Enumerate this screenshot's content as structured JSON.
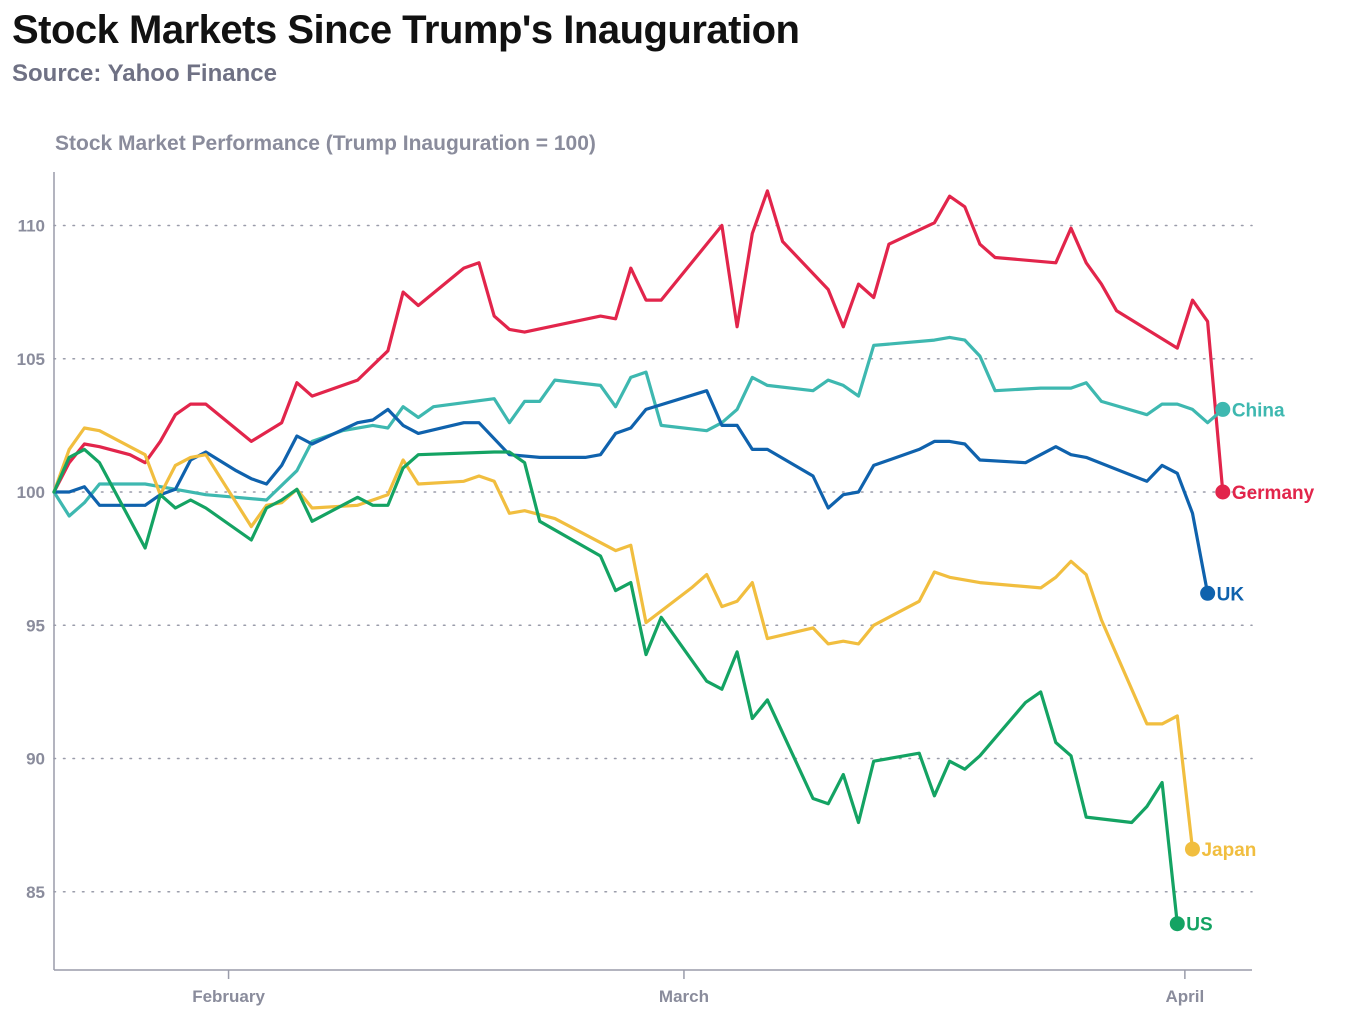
{
  "header": {
    "title": "Stock Markets Since Trump's Inauguration",
    "source": "Source: Yahoo Finance"
  },
  "chart_data": {
    "type": "line",
    "title": "Stock Market Performance (Trump Inauguration = 100)",
    "xlabel": "",
    "ylabel": "",
    "ylim": [
      82,
      112
    ],
    "yticks": [
      85,
      90,
      95,
      100,
      105,
      110
    ],
    "xticks": [
      {
        "label": "February",
        "day": 11.5
      },
      {
        "label": "March",
        "day": 41.5
      },
      {
        "label": "April",
        "day": 74.5
      }
    ],
    "xrange_days": [
      0,
      78
    ],
    "grid": "horizontal-dotted",
    "series": [
      {
        "name": "Germany",
        "color": "#e2254b",
        "end_value": 100.0,
        "points": [
          [
            0,
            100
          ],
          [
            1,
            101.1
          ],
          [
            2,
            101.8
          ],
          [
            3,
            101.7
          ],
          [
            5,
            101.4
          ],
          [
            6,
            101.1
          ],
          [
            7,
            101.9
          ],
          [
            8,
            102.9
          ],
          [
            9,
            103.3
          ],
          [
            10,
            103.3
          ],
          [
            13,
            101.9
          ],
          [
            15,
            102.6
          ],
          [
            16,
            104.1
          ],
          [
            17,
            103.6
          ],
          [
            20,
            104.2
          ],
          [
            22,
            105.3
          ],
          [
            23,
            107.5
          ],
          [
            24,
            107.0
          ],
          [
            27,
            108.4
          ],
          [
            28,
            108.6
          ],
          [
            29,
            106.6
          ],
          [
            30,
            106.1
          ],
          [
            31,
            106.0
          ],
          [
            36,
            106.6
          ],
          [
            37,
            106.5
          ],
          [
            38,
            108.4
          ],
          [
            39,
            107.2
          ],
          [
            40,
            107.2
          ],
          [
            44,
            110.0
          ],
          [
            45,
            106.2
          ],
          [
            46,
            109.7
          ],
          [
            47,
            111.3
          ],
          [
            48,
            109.4
          ],
          [
            51,
            107.6
          ],
          [
            52,
            106.2
          ],
          [
            53,
            107.8
          ],
          [
            54,
            107.3
          ],
          [
            55,
            109.3
          ],
          [
            58,
            110.1
          ],
          [
            59,
            111.1
          ],
          [
            60,
            110.7
          ],
          [
            61,
            109.3
          ],
          [
            62,
            108.8
          ],
          [
            66,
            108.6
          ],
          [
            67,
            109.9
          ],
          [
            68,
            108.6
          ],
          [
            69,
            107.8
          ],
          [
            70,
            106.8
          ],
          [
            74,
            105.4
          ],
          [
            75,
            107.2
          ],
          [
            76,
            106.4
          ],
          [
            77,
            100.0
          ]
        ]
      },
      {
        "name": "China",
        "color": "#3eb8b0",
        "end_value": 103.1,
        "points": [
          [
            0,
            100
          ],
          [
            1,
            99.1
          ],
          [
            2,
            99.6
          ],
          [
            3,
            100.3
          ],
          [
            5,
            100.3
          ],
          [
            6,
            100.3
          ],
          [
            8,
            100.1
          ],
          [
            10,
            99.9
          ],
          [
            12,
            99.8
          ],
          [
            14,
            99.7
          ],
          [
            16,
            100.8
          ],
          [
            17,
            101.9
          ],
          [
            19,
            102.3
          ],
          [
            21,
            102.5
          ],
          [
            22,
            102.4
          ],
          [
            23,
            103.2
          ],
          [
            24,
            102.8
          ],
          [
            25,
            103.2
          ],
          [
            29,
            103.5
          ],
          [
            30,
            102.6
          ],
          [
            31,
            103.4
          ],
          [
            32,
            103.4
          ],
          [
            33,
            104.2
          ],
          [
            36,
            104.0
          ],
          [
            37,
            103.2
          ],
          [
            38,
            104.3
          ],
          [
            39,
            104.5
          ],
          [
            40,
            102.5
          ],
          [
            43,
            102.3
          ],
          [
            44,
            102.6
          ],
          [
            45,
            103.1
          ],
          [
            46,
            104.3
          ],
          [
            47,
            104.0
          ],
          [
            50,
            103.8
          ],
          [
            51,
            104.2
          ],
          [
            52,
            104.0
          ],
          [
            53,
            103.6
          ],
          [
            54,
            105.5
          ],
          [
            58,
            105.7
          ],
          [
            59,
            105.8
          ],
          [
            60,
            105.7
          ],
          [
            61,
            105.1
          ],
          [
            62,
            103.8
          ],
          [
            65,
            103.9
          ],
          [
            67,
            103.9
          ],
          [
            68,
            104.1
          ],
          [
            69,
            103.4
          ],
          [
            72,
            102.9
          ],
          [
            73,
            103.3
          ],
          [
            74,
            103.3
          ],
          [
            75,
            103.1
          ],
          [
            76,
            102.6
          ],
          [
            77,
            103.1
          ]
        ]
      },
      {
        "name": "UK",
        "color": "#0f62ad",
        "end_value": 96.2,
        "points": [
          [
            0,
            100
          ],
          [
            1,
            100.0
          ],
          [
            2,
            100.2
          ],
          [
            3,
            99.5
          ],
          [
            6,
            99.5
          ],
          [
            7,
            99.9
          ],
          [
            8,
            100.1
          ],
          [
            9,
            101.2
          ],
          [
            10,
            101.5
          ],
          [
            12,
            100.8
          ],
          [
            13,
            100.5
          ],
          [
            14,
            100.3
          ],
          [
            15,
            101.0
          ],
          [
            16,
            102.1
          ],
          [
            17,
            101.8
          ],
          [
            20,
            102.6
          ],
          [
            21,
            102.7
          ],
          [
            22,
            103.1
          ],
          [
            23,
            102.5
          ],
          [
            24,
            102.2
          ],
          [
            27,
            102.6
          ],
          [
            28,
            102.6
          ],
          [
            30,
            101.4
          ],
          [
            32,
            101.3
          ],
          [
            35,
            101.3
          ],
          [
            36,
            101.4
          ],
          [
            37,
            102.2
          ],
          [
            38,
            102.4
          ],
          [
            39,
            103.1
          ],
          [
            43,
            103.8
          ],
          [
            44,
            102.5
          ],
          [
            45,
            102.5
          ],
          [
            46,
            101.6
          ],
          [
            47,
            101.6
          ],
          [
            50,
            100.6
          ],
          [
            51,
            99.4
          ],
          [
            52,
            99.9
          ],
          [
            53,
            100.0
          ],
          [
            54,
            101.0
          ],
          [
            57,
            101.6
          ],
          [
            58,
            101.9
          ],
          [
            59,
            101.9
          ],
          [
            60,
            101.8
          ],
          [
            61,
            101.2
          ],
          [
            64,
            101.1
          ],
          [
            66,
            101.7
          ],
          [
            67,
            101.4
          ],
          [
            68,
            101.3
          ],
          [
            72,
            100.4
          ],
          [
            73,
            101.0
          ],
          [
            74,
            100.7
          ],
          [
            75,
            99.2
          ],
          [
            76,
            96.2
          ]
        ]
      },
      {
        "name": "Japan",
        "color": "#f1be3f",
        "end_value": 86.6,
        "points": [
          [
            0,
            100
          ],
          [
            1,
            101.6
          ],
          [
            2,
            102.4
          ],
          [
            3,
            102.3
          ],
          [
            6,
            101.4
          ],
          [
            7,
            99.9
          ],
          [
            8,
            101.0
          ],
          [
            9,
            101.3
          ],
          [
            10,
            101.4
          ],
          [
            13,
            98.7
          ],
          [
            14,
            99.5
          ],
          [
            15,
            99.6
          ],
          [
            16,
            100.1
          ],
          [
            17,
            99.4
          ],
          [
            20,
            99.5
          ],
          [
            22,
            99.9
          ],
          [
            23,
            101.2
          ],
          [
            24,
            100.3
          ],
          [
            27,
            100.4
          ],
          [
            28,
            100.6
          ],
          [
            29,
            100.4
          ],
          [
            30,
            99.2
          ],
          [
            31,
            99.3
          ],
          [
            33,
            99.0
          ],
          [
            37,
            97.8
          ],
          [
            38,
            98.0
          ],
          [
            39,
            95.1
          ],
          [
            42,
            96.4
          ],
          [
            43,
            96.9
          ],
          [
            44,
            95.7
          ],
          [
            45,
            95.9
          ],
          [
            46,
            96.6
          ],
          [
            47,
            94.5
          ],
          [
            50,
            94.9
          ],
          [
            51,
            94.3
          ],
          [
            52,
            94.4
          ],
          [
            53,
            94.3
          ],
          [
            54,
            95.0
          ],
          [
            57,
            95.9
          ],
          [
            58,
            97.0
          ],
          [
            59,
            96.8
          ],
          [
            61,
            96.6
          ],
          [
            65,
            96.4
          ],
          [
            66,
            96.8
          ],
          [
            67,
            97.4
          ],
          [
            68,
            96.9
          ],
          [
            69,
            95.2
          ],
          [
            72,
            91.3
          ],
          [
            73,
            91.3
          ],
          [
            74,
            91.6
          ],
          [
            75,
            86.6
          ]
        ]
      },
      {
        "name": "US",
        "color": "#14a363",
        "end_value": 83.8,
        "points": [
          [
            0,
            100
          ],
          [
            1,
            101.3
          ],
          [
            2,
            101.6
          ],
          [
            3,
            101.1
          ],
          [
            6,
            97.9
          ],
          [
            7,
            99.9
          ],
          [
            8,
            99.4
          ],
          [
            9,
            99.7
          ],
          [
            10,
            99.4
          ],
          [
            13,
            98.2
          ],
          [
            14,
            99.4
          ],
          [
            15,
            99.7
          ],
          [
            16,
            100.1
          ],
          [
            17,
            98.9
          ],
          [
            20,
            99.8
          ],
          [
            21,
            99.5
          ],
          [
            22,
            99.5
          ],
          [
            23,
            100.9
          ],
          [
            24,
            101.4
          ],
          [
            29,
            101.5
          ],
          [
            30,
            101.5
          ],
          [
            31,
            101.1
          ],
          [
            32,
            98.9
          ],
          [
            36,
            97.6
          ],
          [
            37,
            96.3
          ],
          [
            38,
            96.6
          ],
          [
            39,
            93.9
          ],
          [
            40,
            95.3
          ],
          [
            43,
            92.9
          ],
          [
            44,
            92.6
          ],
          [
            45,
            94.0
          ],
          [
            46,
            91.5
          ],
          [
            47,
            92.2
          ],
          [
            50,
            88.5
          ],
          [
            51,
            88.3
          ],
          [
            52,
            89.4
          ],
          [
            53,
            87.6
          ],
          [
            54,
            89.9
          ],
          [
            57,
            90.2
          ],
          [
            58,
            88.6
          ],
          [
            59,
            89.9
          ],
          [
            60,
            89.6
          ],
          [
            61,
            90.1
          ],
          [
            64,
            92.1
          ],
          [
            65,
            92.5
          ],
          [
            66,
            90.6
          ],
          [
            67,
            90.1
          ],
          [
            68,
            87.8
          ],
          [
            71,
            87.6
          ],
          [
            72,
            88.2
          ],
          [
            73,
            89.1
          ],
          [
            74,
            83.8
          ]
        ]
      }
    ]
  }
}
